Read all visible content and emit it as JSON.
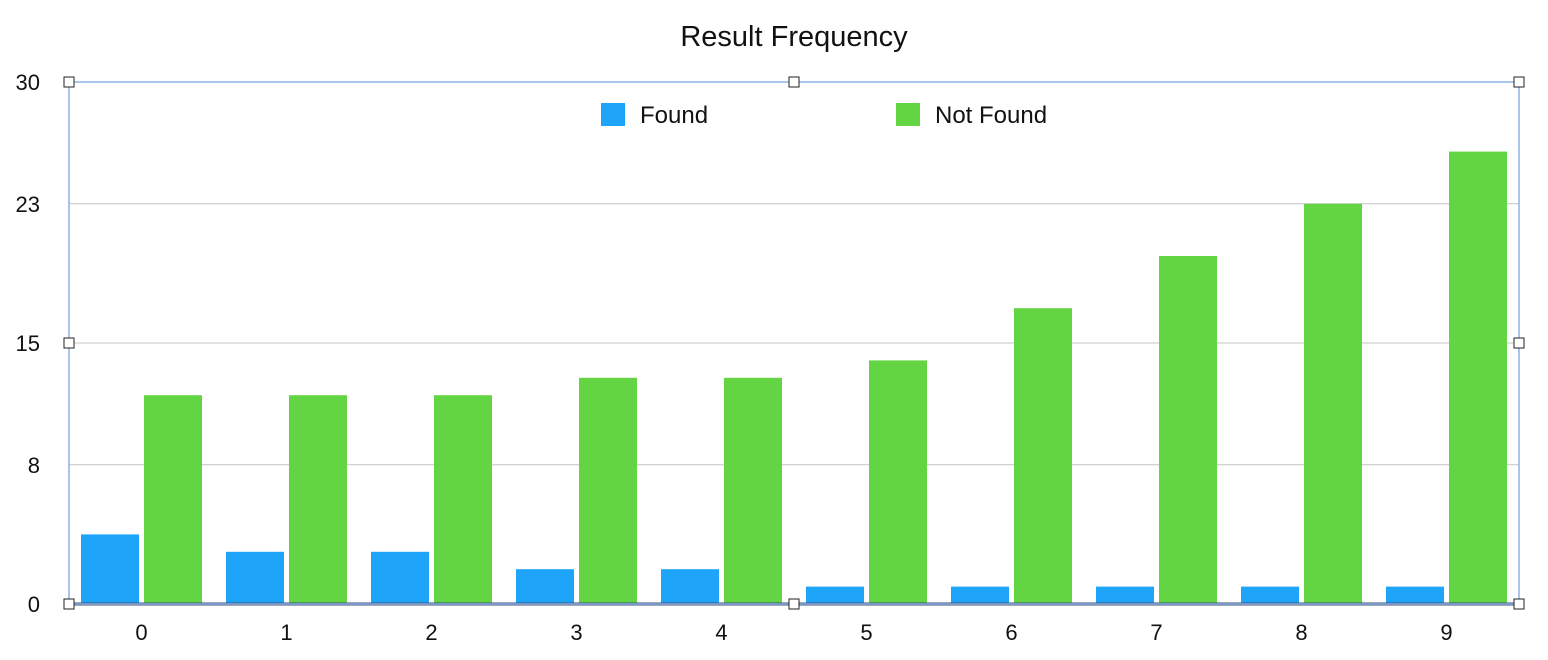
{
  "chart_data": {
    "type": "bar",
    "title": "Result Frequency",
    "xlabel": "",
    "ylabel": "",
    "categories": [
      "0",
      "1",
      "2",
      "3",
      "4",
      "5",
      "6",
      "7",
      "8",
      "9"
    ],
    "series": [
      {
        "name": "Found",
        "color": "#1EA4F8",
        "values": [
          4,
          3,
          3,
          2,
          2,
          1,
          1,
          1,
          1,
          1
        ]
      },
      {
        "name": "Not Found",
        "color": "#63D543",
        "values": [
          12,
          12,
          12,
          13,
          13,
          14,
          17,
          20,
          23,
          26
        ]
      }
    ],
    "ylim": [
      0,
      30
    ],
    "yticks": [
      0,
      8,
      15,
      23,
      30
    ],
    "grid": true,
    "legend_position": "top-center",
    "selection_handles": true
  }
}
